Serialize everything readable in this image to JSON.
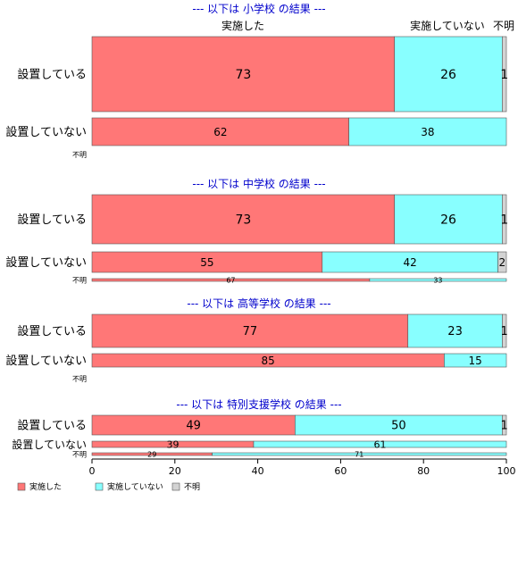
{
  "colors": {
    "implemented": "#ff7777",
    "not_implemented": "#88ffff",
    "unknown": "#d3d3d3"
  },
  "column_headers": {
    "implemented": "実施した",
    "not_implemented": "実施していない",
    "unknown": "不明"
  },
  "chart_data": {
    "type": "bar",
    "orientation": "horizontal",
    "stacked": "percent",
    "xlim": [
      0,
      100
    ],
    "x_ticks": [
      "0",
      "20",
      "40",
      "60",
      "80",
      "100"
    ],
    "legend": {
      "placement": "bottom-left",
      "entries": [
        "実施した",
        "実施していない",
        "不明"
      ]
    },
    "panels": [
      {
        "title": "--- 以下は 小学校 の結果 ---",
        "rows": [
          {
            "label": "設置している",
            "values": [
              73,
              26,
              1
            ],
            "labels": [
              "73",
              "26",
              "1"
            ]
          },
          {
            "label": "設置していない",
            "values": [
              62,
              38,
              0
            ],
            "labels": [
              "62",
              "38",
              ""
            ]
          },
          {
            "label": "不明",
            "values": [
              0,
              0,
              0
            ],
            "labels": [
              "",
              "",
              ""
            ]
          }
        ]
      },
      {
        "title": "--- 以下は 中学校 の結果 ---",
        "rows": [
          {
            "label": "設置している",
            "values": [
              73,
              26,
              1
            ],
            "labels": [
              "73",
              "26",
              "1"
            ]
          },
          {
            "label": "設置していない",
            "values": [
              55,
              42,
              2
            ],
            "labels": [
              "55",
              "42",
              "2"
            ]
          },
          {
            "label": "不明",
            "values": [
              67,
              33,
              0
            ],
            "labels": [
              "67",
              "33",
              ""
            ]
          }
        ]
      },
      {
        "title": "--- 以下は 高等学校 の結果 ---",
        "rows": [
          {
            "label": "設置している",
            "values": [
              77,
              23,
              1
            ],
            "labels": [
              "77",
              "23",
              "1"
            ]
          },
          {
            "label": "設置していない",
            "values": [
              85,
              15,
              0
            ],
            "labels": [
              "85",
              "15",
              ""
            ]
          },
          {
            "label": "不明",
            "values": [
              0,
              0,
              0
            ],
            "labels": [
              "",
              "",
              ""
            ]
          }
        ]
      },
      {
        "title": "--- 以下は 特別支援学校 の結果 ---",
        "rows": [
          {
            "label": "設置している",
            "values": [
              49,
              50,
              1
            ],
            "labels": [
              "49",
              "50",
              "1"
            ]
          },
          {
            "label": "設置していない",
            "values": [
              39,
              61,
              0
            ],
            "labels": [
              "39",
              "61",
              ""
            ]
          },
          {
            "label": "不明",
            "values": [
              29,
              71,
              0
            ],
            "labels": [
              "29",
              "71",
              ""
            ]
          }
        ]
      }
    ]
  }
}
